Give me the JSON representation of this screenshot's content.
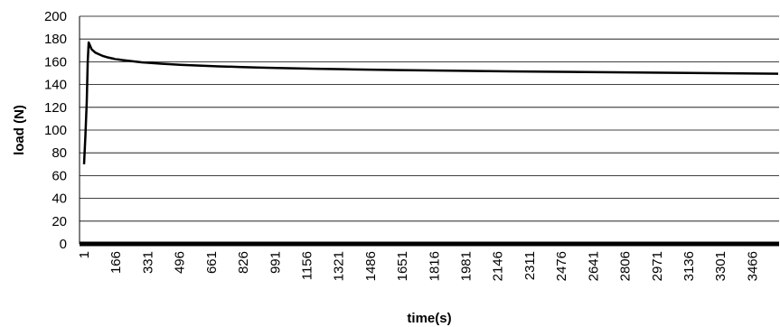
{
  "chart_data": {
    "type": "line",
    "title": "",
    "xlabel": "time(s)",
    "ylabel": "load (N)",
    "ylim": [
      0,
      200
    ],
    "y_ticks": [
      0,
      20,
      40,
      60,
      80,
      100,
      120,
      140,
      160,
      180,
      200
    ],
    "x_tick_labels": [
      "1",
      "166",
      "331",
      "496",
      "661",
      "826",
      "991",
      "1156",
      "1321",
      "1486",
      "1651",
      "1816",
      "1981",
      "2146",
      "2311",
      "2476",
      "2641",
      "2806",
      "2971",
      "3136",
      "3301",
      "3466"
    ],
    "xlim": [
      1,
      3600
    ],
    "grid": "horizontal",
    "line_color": "#000000",
    "series": [
      {
        "x": [
          1,
          8,
          15,
          20,
          25,
          30,
          40,
          60,
          80,
          100,
          120,
          160,
          200,
          250,
          300,
          400,
          500,
          600,
          700,
          800,
          900,
          1000,
          1200,
          1400,
          1600,
          1800,
          2000,
          2200,
          2400,
          2600,
          2800,
          3000,
          3200,
          3400,
          3600
        ],
        "y": [
          70,
          95,
          125,
          160,
          177,
          175,
          171,
          168,
          166.5,
          165,
          164,
          162.5,
          161.5,
          160.5,
          159.5,
          158.3,
          157.3,
          156.6,
          156,
          155.5,
          155,
          154.6,
          153.9,
          153.3,
          152.8,
          152.4,
          152,
          151.6,
          151.3,
          151,
          150.7,
          150.4,
          150.1,
          149.8,
          149.5
        ]
      }
    ]
  }
}
